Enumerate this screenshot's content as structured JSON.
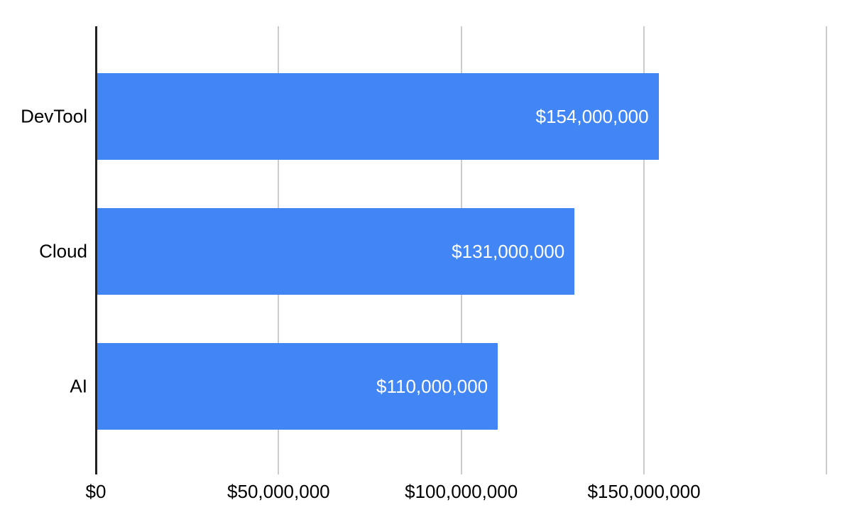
{
  "chart_data": {
    "type": "bar",
    "orientation": "horizontal",
    "title": "",
    "xlabel": "",
    "ylabel": "",
    "categories": [
      "DevTool",
      "Cloud",
      "AI"
    ],
    "values": [
      154000000,
      131000000,
      110000000
    ],
    "bar_labels": [
      "$154,000,000",
      "$131,000,000",
      "$110,000,000"
    ],
    "xlim": [
      0,
      200000000
    ],
    "x_ticks": [
      {
        "value": 0,
        "label": "$0"
      },
      {
        "value": 50000000,
        "label": "$50,000,000"
      },
      {
        "value": 100000000,
        "label": "$100,000,000"
      },
      {
        "value": 150000000,
        "label": "$150,000,000"
      },
      {
        "value": 200000000,
        "label": ""
      }
    ],
    "grid": true,
    "legend": false,
    "colors": {
      "bar": "#4285f4",
      "bar_label_text": "#ffffff",
      "axis_line": "#222222",
      "gridline": "#cccccc",
      "tick_text": "#000000",
      "background": "#ffffff"
    }
  }
}
